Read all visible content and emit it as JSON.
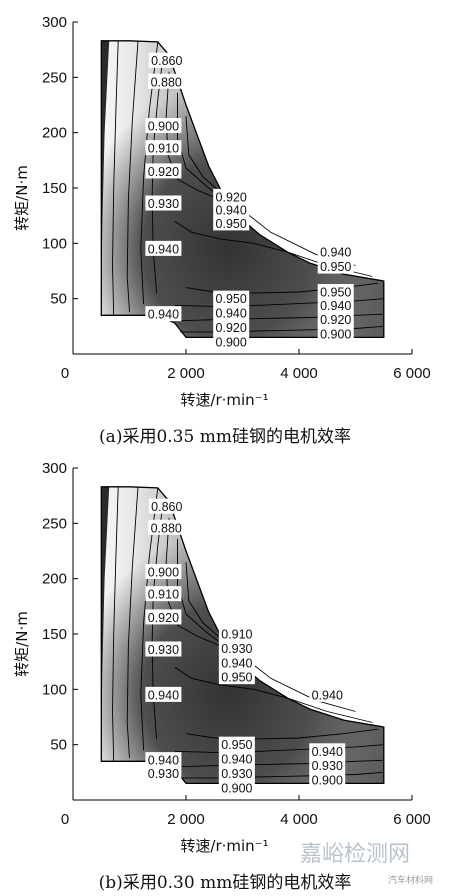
{
  "chart_data": [
    {
      "type": "contour",
      "xlabel": "转速/r·min⁻¹",
      "ylabel": "转矩/N·m",
      "xticks": [
        "0",
        "2 000",
        "4 000",
        "6 000"
      ],
      "yticks": [
        "50",
        "100",
        "150",
        "200",
        "250",
        "300"
      ],
      "xlim": [
        0,
        6000
      ],
      "ylim": [
        0,
        300
      ],
      "caption": "(a)采用0.35 mm硅钢的电机效率",
      "contour_labels": [
        {
          "text": "0.860",
          "x": 1660,
          "y": 265
        },
        {
          "text": "0.880",
          "x": 1650,
          "y": 246
        },
        {
          "text": "0.900",
          "x": 1600,
          "y": 206
        },
        {
          "text": "0.910",
          "x": 1600,
          "y": 186
        },
        {
          "text": "0.920",
          "x": 1600,
          "y": 165
        },
        {
          "text": "0.930",
          "x": 1600,
          "y": 136
        },
        {
          "text": "0.940",
          "x": 1600,
          "y": 95
        },
        {
          "text": "0.940",
          "x": 1600,
          "y": 36
        },
        {
          "text": "0.920",
          "x": 2800,
          "y": 142
        },
        {
          "text": "0.940",
          "x": 2800,
          "y": 130
        },
        {
          "text": "0.950",
          "x": 2800,
          "y": 118
        },
        {
          "text": "0.950",
          "x": 2800,
          "y": 50
        },
        {
          "text": "0.940",
          "x": 2800,
          "y": 37
        },
        {
          "text": "0.920",
          "x": 2800,
          "y": 24
        },
        {
          "text": "0.900",
          "x": 2800,
          "y": 11
        },
        {
          "text": "0.940",
          "x": 4650,
          "y": 92
        },
        {
          "text": "0.950",
          "x": 4650,
          "y": 79
        },
        {
          "text": "0.950",
          "x": 4650,
          "y": 56
        },
        {
          "text": "0.940",
          "x": 4650,
          "y": 44
        },
        {
          "text": "0.920",
          "x": 4650,
          "y": 31
        },
        {
          "text": "0.900",
          "x": 4650,
          "y": 18
        }
      ]
    },
    {
      "type": "contour",
      "xlabel": "转速/r·min⁻¹",
      "ylabel": "转矩/N·m",
      "xticks": [
        "0",
        "2 000",
        "4 000",
        "6 000"
      ],
      "yticks": [
        "50",
        "100",
        "150",
        "200",
        "250",
        "300"
      ],
      "xlim": [
        0,
        6000
      ],
      "ylim": [
        0,
        300
      ],
      "caption": "(b)采用0.30 mm硅钢的电机效率",
      "contour_labels": [
        {
          "text": "0.860",
          "x": 1660,
          "y": 265
        },
        {
          "text": "0.880",
          "x": 1650,
          "y": 246
        },
        {
          "text": "0.900",
          "x": 1600,
          "y": 206
        },
        {
          "text": "0.910",
          "x": 1600,
          "y": 186
        },
        {
          "text": "0.920",
          "x": 1600,
          "y": 165
        },
        {
          "text": "0.930",
          "x": 1600,
          "y": 136
        },
        {
          "text": "0.940",
          "x": 1600,
          "y": 95
        },
        {
          "text": "0.940",
          "x": 1600,
          "y": 36
        },
        {
          "text": "0.930",
          "x": 1600,
          "y": 24
        },
        {
          "text": "0.910",
          "x": 2900,
          "y": 150
        },
        {
          "text": "0.930",
          "x": 2900,
          "y": 137
        },
        {
          "text": "0.940",
          "x": 2900,
          "y": 124
        },
        {
          "text": "0.950",
          "x": 2900,
          "y": 111
        },
        {
          "text": "0.950",
          "x": 2900,
          "y": 50
        },
        {
          "text": "0.940",
          "x": 2900,
          "y": 37
        },
        {
          "text": "0.930",
          "x": 2900,
          "y": 24
        },
        {
          "text": "0.900",
          "x": 2900,
          "y": 11
        },
        {
          "text": "0.940",
          "x": 4500,
          "y": 95
        },
        {
          "text": "0.940",
          "x": 4500,
          "y": 44
        },
        {
          "text": "0.930",
          "x": 4500,
          "y": 31
        },
        {
          "text": "0.900",
          "x": 4500,
          "y": 18
        }
      ]
    }
  ],
  "watermark": {
    "main": "嘉峪检测网",
    "sub": "汽车材料网"
  },
  "colors": {
    "fill_light": "#f4f4f4",
    "fill_dark": "#2a2a2a",
    "line": "#000000",
    "label_bg": "#ffffff"
  }
}
